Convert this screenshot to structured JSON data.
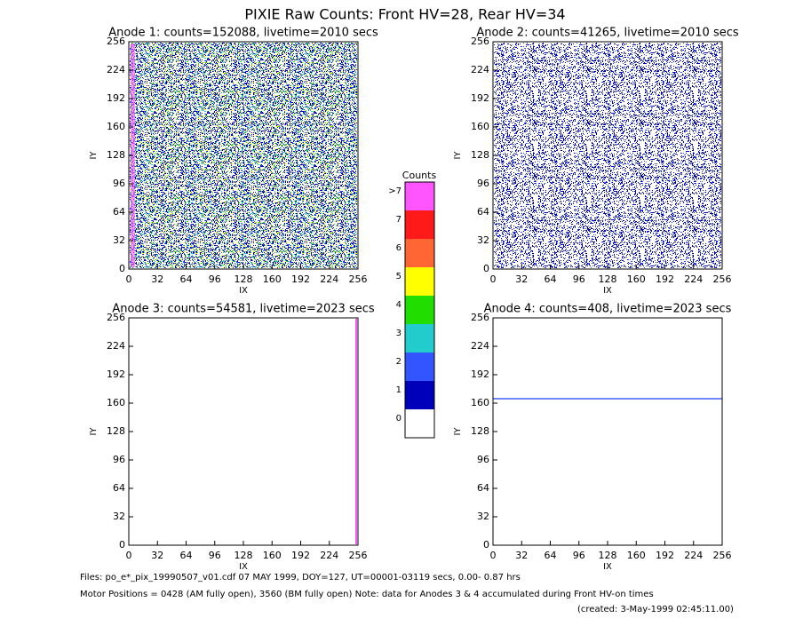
{
  "title": "PIXIE Raw Counts:  Front HV=28, Rear HV=34",
  "chart_data": [
    {
      "type": "heatmap",
      "title": "Anode 1: counts=152088, livetime=2010 secs",
      "x_label": "IX",
      "y_label": "IY",
      "xlim": [
        0,
        256
      ],
      "ylim": [
        0,
        256
      ],
      "xticks": [
        0,
        32,
        64,
        96,
        128,
        160,
        192,
        224,
        256
      ],
      "yticks": [
        0,
        32,
        64,
        96,
        128,
        160,
        192,
        224,
        256
      ]
    },
    {
      "type": "heatmap",
      "title": "Anode 2: counts=41265, livetime=2010 secs",
      "x_label": "IX",
      "y_label": "IY",
      "xlim": [
        0,
        256
      ],
      "ylim": [
        0,
        256
      ],
      "xticks": [
        0,
        32,
        64,
        96,
        128,
        160,
        192,
        224,
        256
      ],
      "yticks": [
        0,
        32,
        64,
        96,
        128,
        160,
        192,
        224,
        256
      ]
    },
    {
      "type": "heatmap",
      "title": "Anode 3: counts=54581, livetime=2023 secs",
      "x_label": "IX",
      "y_label": "IY",
      "xlim": [
        0,
        256
      ],
      "ylim": [
        0,
        256
      ],
      "xticks": [
        0,
        32,
        64,
        96,
        128,
        160,
        192,
        224,
        256
      ],
      "yticks": [
        0,
        32,
        64,
        96,
        128,
        160,
        192,
        224,
        256
      ]
    },
    {
      "type": "heatmap",
      "title": "Anode 4: counts=408, livetime=2023 secs",
      "x_label": "IX",
      "y_label": "IY",
      "xlim": [
        0,
        256
      ],
      "ylim": [
        0,
        256
      ],
      "xticks": [
        0,
        32,
        64,
        96,
        128,
        160,
        192,
        224,
        256
      ],
      "yticks": [
        0,
        32,
        64,
        96,
        128,
        160,
        192,
        224,
        256
      ]
    }
  ],
  "colorbar": {
    "title": "Counts",
    "labels": [
      "0",
      "1",
      "2",
      "3",
      "4",
      "5",
      "6",
      "7",
      ">7"
    ],
    "colors": [
      "#ffffff",
      "#0000bb",
      "#3355ff",
      "#22cccc",
      "#22dd00",
      "#ffff00",
      "#ff6633",
      "#ff1a1a",
      "#ff55ff"
    ]
  },
  "footer": [
    "Files: po_e*_pix_19990507_v01.cdf    07 MAY 1999, DOY=127, UT=00001-03119 secs,  0.00- 0.87 hrs",
    "Motor Positions = 0428 (AM fully open), 3560 (BM fully open)    Note: data for Anodes 3 & 4 accumulated during Front HV-on times",
    "(created:  3-May-1999 02:45:11.00)"
  ]
}
